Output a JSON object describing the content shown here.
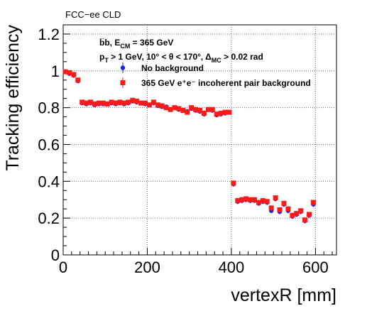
{
  "experiment_label": "FCC−ee CLD",
  "annotation_line1": "b̅b, E",
  "annotation_line1_sub": "CM",
  "annotation_line1_tail": " =  365 GeV",
  "annotation_line2": "p",
  "annotation_line2_sub": "T",
  "annotation_line2_mid": " > 1 GeV, 10° <  θ < 170°,  Δ",
  "annotation_line2_sub2": "MC",
  "annotation_line2_tail": "  > 0.02 rad",
  "colors": {
    "no_bkg": "#1f1fe0",
    "with_bkg": "#ff1a1a",
    "grid": "#666666"
  },
  "chart_data": {
    "type": "scatter",
    "xlabel": "vertexR [mm]",
    "ylabel": "Tracking efficiency",
    "xlim": [
      0,
      650
    ],
    "ylim": [
      0,
      1.25
    ],
    "xticks": [
      0,
      200,
      400,
      600
    ],
    "yticks": [
      0,
      0.2,
      0.4,
      0.6,
      0.8,
      1,
      1.2
    ],
    "xtick_labels": [
      "0",
      "200",
      "400",
      "600"
    ],
    "ytick_labels": [
      "0",
      "0.2",
      "0.4",
      "0.6",
      "0.8",
      "1",
      "1.2"
    ],
    "grid": true,
    "legend_position": "top-right",
    "series": [
      {
        "name": "No background",
        "marker": "circle",
        "x": [
          5,
          15,
          25,
          35,
          45,
          55,
          65,
          75,
          85,
          95,
          105,
          115,
          125,
          135,
          145,
          155,
          165,
          175,
          185,
          195,
          205,
          215,
          225,
          235,
          245,
          255,
          265,
          275,
          285,
          295,
          305,
          315,
          325,
          335,
          345,
          355,
          365,
          375,
          385,
          395,
          405,
          415,
          425,
          435,
          445,
          455,
          465,
          475,
          485,
          495,
          505,
          515,
          525,
          535,
          545,
          555,
          565,
          575,
          585,
          595
        ],
        "y": [
          0.995,
          0.985,
          0.975,
          0.945,
          0.825,
          0.82,
          0.825,
          0.815,
          0.82,
          0.82,
          0.82,
          0.825,
          0.82,
          0.825,
          0.82,
          0.825,
          0.835,
          0.83,
          0.825,
          0.82,
          0.815,
          0.825,
          0.81,
          0.805,
          0.805,
          0.79,
          0.8,
          0.79,
          0.785,
          0.78,
          0.795,
          0.785,
          0.78,
          0.765,
          0.79,
          0.785,
          0.76,
          0.765,
          0.77,
          0.775,
          0.385,
          0.29,
          0.295,
          0.3,
          0.295,
          0.295,
          0.28,
          0.29,
          0.285,
          0.24,
          0.305,
          0.235,
          0.275,
          0.24,
          0.21,
          0.22,
          0.235,
          0.185,
          0.215,
          0.275
        ]
      },
      {
        "name": "365 GeV e⁺e⁻ incoherent pair background",
        "marker": "square",
        "x": [
          5,
          15,
          25,
          35,
          45,
          55,
          65,
          75,
          85,
          95,
          105,
          115,
          125,
          135,
          145,
          155,
          165,
          175,
          185,
          195,
          205,
          215,
          225,
          235,
          245,
          255,
          265,
          275,
          285,
          295,
          305,
          315,
          325,
          335,
          345,
          355,
          365,
          375,
          385,
          395,
          405,
          415,
          425,
          435,
          445,
          455,
          465,
          475,
          485,
          495,
          505,
          515,
          525,
          535,
          545,
          555,
          565,
          575,
          585,
          595
        ],
        "y": [
          0.995,
          0.99,
          0.98,
          0.95,
          0.83,
          0.825,
          0.83,
          0.82,
          0.825,
          0.825,
          0.82,
          0.83,
          0.825,
          0.83,
          0.825,
          0.83,
          0.84,
          0.835,
          0.825,
          0.825,
          0.815,
          0.83,
          0.815,
          0.81,
          0.8,
          0.79,
          0.8,
          0.795,
          0.785,
          0.775,
          0.8,
          0.79,
          0.785,
          0.77,
          0.79,
          0.79,
          0.765,
          0.77,
          0.775,
          0.775,
          0.39,
          0.295,
          0.3,
          0.305,
          0.3,
          0.3,
          0.285,
          0.295,
          0.29,
          0.255,
          0.31,
          0.245,
          0.28,
          0.25,
          0.215,
          0.225,
          0.24,
          0.19,
          0.22,
          0.285
        ]
      }
    ]
  }
}
